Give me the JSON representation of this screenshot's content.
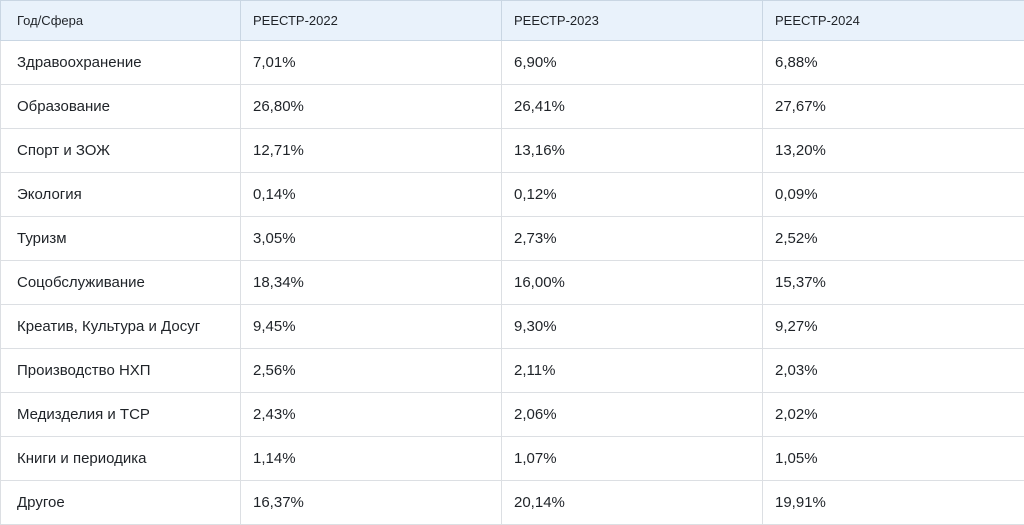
{
  "table": {
    "headers": [
      "Год/Сфера",
      "РЕЕСТР-2022",
      "РЕЕСТР-2023",
      "РЕЕСТР-2024"
    ],
    "rows": [
      [
        "Здравоохранение",
        "7,01%",
        "6,90%",
        "6,88%"
      ],
      [
        "Образование",
        "26,80%",
        "26,41%",
        "27,67%"
      ],
      [
        "Спорт и ЗОЖ",
        "12,71%",
        "13,16%",
        "13,20%"
      ],
      [
        "Экология",
        "0,14%",
        "0,12%",
        "0,09%"
      ],
      [
        "Туризм",
        "3,05%",
        "2,73%",
        "2,52%"
      ],
      [
        "Соцобслуживание",
        "18,34%",
        "16,00%",
        "15,37%"
      ],
      [
        "Креатив, Культура и Досуг",
        "9,45%",
        "9,30%",
        "9,27%"
      ],
      [
        "Производство НХП",
        "2,56%",
        "2,11%",
        "2,03%"
      ],
      [
        "Медизделия и ТСР",
        "2,43%",
        "2,06%",
        "2,02%"
      ],
      [
        "Книги и периодика",
        "1,14%",
        "1,07%",
        "1,05%"
      ],
      [
        "Другое",
        "16,37%",
        "20,14%",
        "19,91%"
      ]
    ]
  }
}
